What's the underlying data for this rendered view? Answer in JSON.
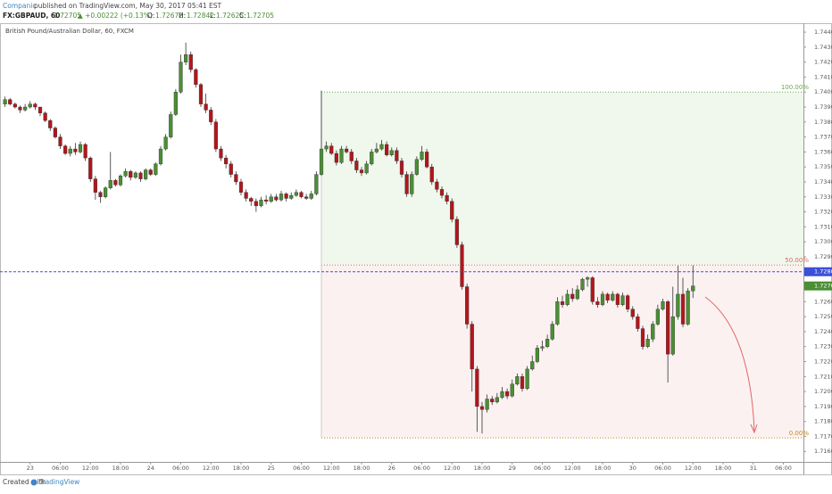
{
  "header": {
    "author": "Companic",
    "published": "published on TradingView.com, May 30, 2017 05:41 EST",
    "symbol": "FX:GBPAUD, 60",
    "last": "1.72705",
    "change": "▲ +0.00222 (+0.13%)",
    "o_label": "O:",
    "o": "1.72672",
    "h_label": "H:",
    "h": "1.72842",
    "l_label": "L:",
    "l": "1.72625",
    "c_label": "C:",
    "c": "1.72705"
  },
  "footer": {
    "created": "Created with",
    "brand": "TradingView"
  },
  "chart_data": {
    "type": "candlestick",
    "title": "British Pound/Australian Dollar, 60, FXCM",
    "up_color": "#4a8f34",
    "down_color": "#b3161b",
    "xlim": [
      -1,
      159
    ],
    "ylim": [
      1.7153,
      1.7446
    ],
    "xticks": [
      {
        "value": 5,
        "label": "23"
      },
      {
        "value": 11,
        "label": "06:00"
      },
      {
        "value": 17,
        "label": "12:00"
      },
      {
        "value": 23,
        "label": "18:00"
      },
      {
        "value": 29,
        "label": "24"
      },
      {
        "value": 35,
        "label": "06:00"
      },
      {
        "value": 41,
        "label": "12:00"
      },
      {
        "value": 47,
        "label": "18:00"
      },
      {
        "value": 53,
        "label": "25"
      },
      {
        "value": 59,
        "label": "06:00"
      },
      {
        "value": 65,
        "label": "12:00"
      },
      {
        "value": 71,
        "label": "18:00"
      },
      {
        "value": 77,
        "label": "26"
      },
      {
        "value": 83,
        "label": "06:00"
      },
      {
        "value": 89,
        "label": "12:00"
      },
      {
        "value": 95,
        "label": "18:00"
      },
      {
        "value": 101,
        "label": "29"
      },
      {
        "value": 107,
        "label": "06:00"
      },
      {
        "value": 113,
        "label": "12:00"
      },
      {
        "value": 119,
        "label": "18:00"
      },
      {
        "value": 125,
        "label": "30"
      },
      {
        "value": 131,
        "label": "06:00"
      },
      {
        "value": 137,
        "label": "12:00"
      },
      {
        "value": 143,
        "label": "18:00"
      },
      {
        "value": 149,
        "label": "31"
      },
      {
        "value": 155,
        "label": "06:00"
      }
    ],
    "yticks": [
      {
        "value": 1.716,
        "label": "1.71600"
      },
      {
        "value": 1.717,
        "label": "1.71700"
      },
      {
        "value": 1.718,
        "label": "1.71800"
      },
      {
        "value": 1.719,
        "label": "1.71900"
      },
      {
        "value": 1.72,
        "label": "1.72000"
      },
      {
        "value": 1.721,
        "label": "1.72100"
      },
      {
        "value": 1.722,
        "label": "1.72200"
      },
      {
        "value": 1.723,
        "label": "1.72300"
      },
      {
        "value": 1.724,
        "label": "1.72400"
      },
      {
        "value": 1.725,
        "label": "1.72500"
      },
      {
        "value": 1.726,
        "label": "1.72600"
      },
      {
        "value": 1.727,
        "label": "1.72700"
      },
      {
        "value": 1.729,
        "label": "1.72900"
      },
      {
        "value": 1.73,
        "label": "1.73000"
      },
      {
        "value": 1.731,
        "label": "1.73100"
      },
      {
        "value": 1.732,
        "label": "1.73200"
      },
      {
        "value": 1.733,
        "label": "1.73300"
      },
      {
        "value": 1.734,
        "label": "1.73400"
      },
      {
        "value": 1.735,
        "label": "1.73500"
      },
      {
        "value": 1.736,
        "label": "1.73600"
      },
      {
        "value": 1.737,
        "label": "1.73700"
      },
      {
        "value": 1.738,
        "label": "1.73800"
      },
      {
        "value": 1.739,
        "label": "1.73900"
      },
      {
        "value": 1.74,
        "label": "1.74000"
      },
      {
        "value": 1.741,
        "label": "1.74100"
      },
      {
        "value": 1.742,
        "label": "1.74200"
      },
      {
        "value": 1.743,
        "label": "1.74300"
      },
      {
        "value": 1.744,
        "label": "1.74400"
      }
    ],
    "hline": {
      "value": 1.728,
      "label": "1.72800",
      "color": "#3b4fd8"
    },
    "last_price": 1.72705,
    "last_color": "#4a8f34",
    "fib": {
      "start_x": 63,
      "levels": [
        {
          "value": 1.74,
          "label": "100.00%",
          "color": "#6aa84f"
        },
        {
          "value": 1.72845,
          "label": "50.00%",
          "color": "#e06666"
        },
        {
          "value": 1.7169,
          "label": "0.00%",
          "color": "#c88a1e"
        }
      ]
    },
    "x": [
      0,
      1,
      2,
      3,
      4,
      5,
      6,
      7,
      8,
      9,
      10,
      11,
      12,
      13,
      14,
      15,
      16,
      17,
      18,
      19,
      20,
      21,
      22,
      23,
      24,
      25,
      26,
      27,
      28,
      29,
      30,
      31,
      32,
      33,
      34,
      35,
      36,
      37,
      38,
      39,
      40,
      41,
      42,
      43,
      44,
      45,
      46,
      47,
      48,
      49,
      50,
      51,
      52,
      53,
      54,
      55,
      56,
      57,
      58,
      59,
      60,
      61,
      62,
      63,
      64,
      65,
      66,
      67,
      68,
      69,
      70,
      71,
      72,
      73,
      74,
      75,
      76,
      77,
      78,
      79,
      80,
      81,
      82,
      83,
      84,
      85,
      86,
      87,
      88,
      89,
      90,
      91,
      92,
      93,
      94,
      95,
      96,
      97,
      98,
      99,
      100,
      101,
      102,
      103,
      104,
      105,
      106,
      107,
      108,
      109,
      110,
      111,
      112,
      113,
      114,
      115,
      116,
      117,
      118,
      119,
      120,
      121,
      122,
      123,
      124,
      125,
      126,
      127,
      128,
      129,
      130,
      131,
      132,
      133,
      134,
      135,
      136,
      137
    ],
    "ohlc": [
      [
        1.7392,
        1.7397,
        1.739,
        1.7395
      ],
      [
        1.7395,
        1.7396,
        1.7391,
        1.7392
      ],
      [
        1.7392,
        1.7393,
        1.7389,
        1.739
      ],
      [
        1.739,
        1.7391,
        1.7386,
        1.7388
      ],
      [
        1.7388,
        1.7392,
        1.7387,
        1.739
      ],
      [
        1.739,
        1.7394,
        1.7389,
        1.7392
      ],
      [
        1.7392,
        1.7393,
        1.7388,
        1.739
      ],
      [
        1.739,
        1.739,
        1.7384,
        1.7386
      ],
      [
        1.7386,
        1.7387,
        1.738,
        1.7381
      ],
      [
        1.7381,
        1.7382,
        1.7374,
        1.7376
      ],
      [
        1.7376,
        1.7377,
        1.7369,
        1.737
      ],
      [
        1.737,
        1.7372,
        1.7362,
        1.7364
      ],
      [
        1.7364,
        1.7365,
        1.7358,
        1.7359
      ],
      [
        1.7359,
        1.7364,
        1.7357,
        1.7362
      ],
      [
        1.7362,
        1.7366,
        1.7358,
        1.736
      ],
      [
        1.736,
        1.7367,
        1.7359,
        1.7365
      ],
      [
        1.7365,
        1.7366,
        1.7354,
        1.7356
      ],
      [
        1.7356,
        1.7357,
        1.734,
        1.7342
      ],
      [
        1.7342,
        1.7344,
        1.7328,
        1.7333
      ],
      [
        1.7333,
        1.7334,
        1.7326,
        1.733
      ],
      [
        1.733,
        1.7337,
        1.7329,
        1.7336
      ],
      [
        1.7336,
        1.736,
        1.7335,
        1.7341
      ],
      [
        1.7341,
        1.7342,
        1.7337,
        1.7338
      ],
      [
        1.7338,
        1.7345,
        1.7337,
        1.7344
      ],
      [
        1.7344,
        1.7349,
        1.7343,
        1.7347
      ],
      [
        1.7347,
        1.7348,
        1.7341,
        1.7343
      ],
      [
        1.7343,
        1.7347,
        1.7342,
        1.7346
      ],
      [
        1.7346,
        1.7347,
        1.734,
        1.7342
      ],
      [
        1.7342,
        1.7349,
        1.7341,
        1.7348
      ],
      [
        1.7348,
        1.7349,
        1.7344,
        1.7345
      ],
      [
        1.7345,
        1.7353,
        1.7344,
        1.7352
      ],
      [
        1.7352,
        1.7364,
        1.7351,
        1.7362
      ],
      [
        1.7362,
        1.7372,
        1.7361,
        1.737
      ],
      [
        1.737,
        1.7387,
        1.7369,
        1.7385
      ],
      [
        1.7385,
        1.7402,
        1.7384,
        1.74
      ],
      [
        1.74,
        1.7425,
        1.7399,
        1.742
      ],
      [
        1.742,
        1.7433,
        1.7418,
        1.7425
      ],
      [
        1.7425,
        1.7427,
        1.7413,
        1.7415
      ],
      [
        1.7415,
        1.7416,
        1.7403,
        1.7405
      ],
      [
        1.7405,
        1.7406,
        1.739,
        1.7392
      ],
      [
        1.7392,
        1.7399,
        1.7386,
        1.7388
      ],
      [
        1.7388,
        1.739,
        1.7378,
        1.738
      ],
      [
        1.738,
        1.7382,
        1.736,
        1.7362
      ],
      [
        1.7362,
        1.7364,
        1.7354,
        1.7356
      ],
      [
        1.7356,
        1.7358,
        1.7349,
        1.7352
      ],
      [
        1.7352,
        1.7354,
        1.7343,
        1.7345
      ],
      [
        1.7345,
        1.7347,
        1.7338,
        1.734
      ],
      [
        1.734,
        1.7342,
        1.7331,
        1.7333
      ],
      [
        1.7333,
        1.7335,
        1.7327,
        1.7329
      ],
      [
        1.7329,
        1.733,
        1.7324,
        1.7327
      ],
      [
        1.7327,
        1.7329,
        1.732,
        1.7324
      ],
      [
        1.7324,
        1.733,
        1.7323,
        1.7328
      ],
      [
        1.7328,
        1.7331,
        1.7325,
        1.7327
      ],
      [
        1.7327,
        1.7332,
        1.7326,
        1.733
      ],
      [
        1.733,
        1.7332,
        1.7327,
        1.7328
      ],
      [
        1.7328,
        1.7334,
        1.7327,
        1.7332
      ],
      [
        1.7332,
        1.7333,
        1.7327,
        1.7329
      ],
      [
        1.7329,
        1.7333,
        1.7328,
        1.7331
      ],
      [
        1.7331,
        1.7335,
        1.733,
        1.7333
      ],
      [
        1.7333,
        1.7334,
        1.7329,
        1.733
      ],
      [
        1.733,
        1.7332,
        1.7328,
        1.7329
      ],
      [
        1.7329,
        1.7334,
        1.7328,
        1.7332
      ],
      [
        1.7332,
        1.7347,
        1.7331,
        1.7345
      ],
      [
        1.7345,
        1.7401,
        1.7344,
        1.7362
      ],
      [
        1.7362,
        1.7367,
        1.736,
        1.7364
      ],
      [
        1.7364,
        1.7366,
        1.7358,
        1.7359
      ],
      [
        1.7359,
        1.7361,
        1.7351,
        1.7353
      ],
      [
        1.7353,
        1.7364,
        1.7352,
        1.7362
      ],
      [
        1.7362,
        1.7364,
        1.7359,
        1.736
      ],
      [
        1.736,
        1.7362,
        1.7352,
        1.7354
      ],
      [
        1.7354,
        1.7356,
        1.7346,
        1.7348
      ],
      [
        1.7348,
        1.735,
        1.7344,
        1.7346
      ],
      [
        1.7346,
        1.7354,
        1.7345,
        1.7352
      ],
      [
        1.7352,
        1.7362,
        1.7351,
        1.736
      ],
      [
        1.736,
        1.7366,
        1.7359,
        1.7362
      ],
      [
        1.7362,
        1.7368,
        1.7361,
        1.7365
      ],
      [
        1.7365,
        1.7367,
        1.7357,
        1.7358
      ],
      [
        1.7358,
        1.7363,
        1.7357,
        1.7361
      ],
      [
        1.7361,
        1.7363,
        1.7352,
        1.7354
      ],
      [
        1.7354,
        1.7356,
        1.7343,
        1.7345
      ],
      [
        1.7345,
        1.7347,
        1.733,
        1.7332
      ],
      [
        1.7332,
        1.7347,
        1.733,
        1.7345
      ],
      [
        1.7345,
        1.7357,
        1.7344,
        1.7355
      ],
      [
        1.7355,
        1.7364,
        1.7354,
        1.736
      ],
      [
        1.736,
        1.7362,
        1.7349,
        1.735
      ],
      [
        1.735,
        1.7352,
        1.7338,
        1.734
      ],
      [
        1.734,
        1.7342,
        1.7333,
        1.7335
      ],
      [
        1.7335,
        1.7337,
        1.7329,
        1.7331
      ],
      [
        1.7331,
        1.7333,
        1.7325,
        1.7327
      ],
      [
        1.7327,
        1.7329,
        1.7313,
        1.7315
      ],
      [
        1.7315,
        1.7317,
        1.7296,
        1.7298
      ],
      [
        1.7298,
        1.73,
        1.7268,
        1.727
      ],
      [
        1.727,
        1.7272,
        1.7242,
        1.7245
      ],
      [
        1.7245,
        1.7247,
        1.72,
        1.7215
      ],
      [
        1.7215,
        1.7217,
        1.7173,
        1.719
      ],
      [
        1.719,
        1.7193,
        1.7172,
        1.7188
      ],
      [
        1.7188,
        1.7198,
        1.7186,
        1.7195
      ],
      [
        1.7195,
        1.7197,
        1.7191,
        1.7193
      ],
      [
        1.7193,
        1.7199,
        1.7192,
        1.7196
      ],
      [
        1.7196,
        1.7203,
        1.7195,
        1.72
      ],
      [
        1.72,
        1.7202,
        1.7195,
        1.7197
      ],
      [
        1.7197,
        1.7208,
        1.7196,
        1.7205
      ],
      [
        1.7205,
        1.7212,
        1.7204,
        1.721
      ],
      [
        1.721,
        1.7212,
        1.72,
        1.7202
      ],
      [
        1.7202,
        1.7217,
        1.7201,
        1.7215
      ],
      [
        1.7215,
        1.7224,
        1.7214,
        1.722
      ],
      [
        1.722,
        1.7231,
        1.7219,
        1.7229
      ],
      [
        1.7229,
        1.7234,
        1.7227,
        1.723
      ],
      [
        1.723,
        1.7238,
        1.7229,
        1.7235
      ],
      [
        1.7235,
        1.7247,
        1.7234,
        1.7245
      ],
      [
        1.7245,
        1.7263,
        1.7244,
        1.726
      ],
      [
        1.726,
        1.7264,
        1.7256,
        1.7258
      ],
      [
        1.7258,
        1.7268,
        1.7257,
        1.7265
      ],
      [
        1.7265,
        1.7269,
        1.726,
        1.7262
      ],
      [
        1.7262,
        1.7271,
        1.7261,
        1.7268
      ],
      [
        1.7268,
        1.7276,
        1.7267,
        1.7275
      ],
      [
        1.7275,
        1.7277,
        1.727,
        1.7276
      ],
      [
        1.7276,
        1.7277,
        1.7258,
        1.726
      ],
      [
        1.726,
        1.7263,
        1.7256,
        1.7258
      ],
      [
        1.7258,
        1.7267,
        1.7257,
        1.7265
      ],
      [
        1.7265,
        1.7266,
        1.7259,
        1.7261
      ],
      [
        1.7261,
        1.7267,
        1.726,
        1.7265
      ],
      [
        1.7265,
        1.7266,
        1.7256,
        1.7258
      ],
      [
        1.7258,
        1.7266,
        1.7257,
        1.7264
      ],
      [
        1.7264,
        1.7265,
        1.7253,
        1.7255
      ],
      [
        1.7255,
        1.7257,
        1.7248,
        1.725
      ],
      [
        1.725,
        1.7252,
        1.724,
        1.7242
      ],
      [
        1.7242,
        1.7244,
        1.7228,
        1.723
      ],
      [
        1.723,
        1.7238,
        1.7229,
        1.7235
      ],
      [
        1.7235,
        1.7247,
        1.7233,
        1.7245
      ],
      [
        1.7245,
        1.7258,
        1.7244,
        1.7255
      ],
      [
        1.7255,
        1.7262,
        1.7254,
        1.726
      ],
      [
        1.726,
        1.7261,
        1.7206,
        1.7225
      ],
      [
        1.7225,
        1.727,
        1.7224,
        1.725
      ],
      [
        1.725,
        1.7284,
        1.7248,
        1.7265
      ],
      [
        1.7265,
        1.7276,
        1.7243,
        1.7245
      ],
      [
        1.7245,
        1.7269,
        1.7244,
        1.72672
      ],
      [
        1.72672,
        1.72842,
        1.72625,
        1.72705
      ]
    ]
  }
}
